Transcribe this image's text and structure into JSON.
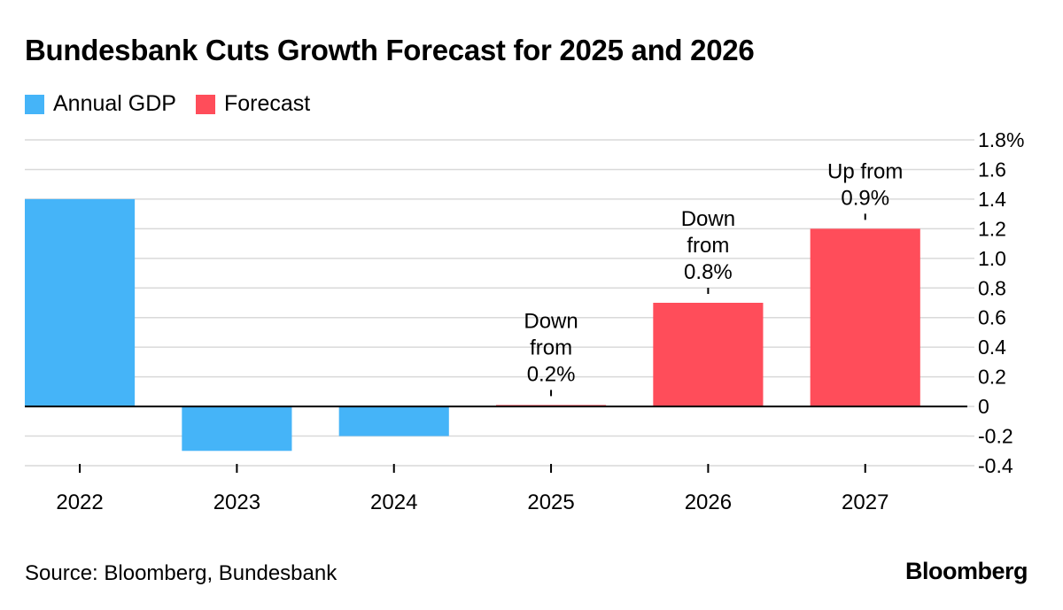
{
  "header": {
    "title": "Bundesbank Cuts Growth Forecast for 2025 and 2026"
  },
  "footer": {
    "source": "Source: Bloomberg, Bundesbank",
    "brand": "Bloomberg"
  },
  "colors": {
    "annual": "#45b4f8",
    "forecast": "#ff4d5a",
    "grid": "#d9d9d9",
    "zero": "#000000"
  },
  "chart_data": {
    "type": "bar",
    "title": "Bundesbank Cuts Growth Forecast for 2025 and 2026",
    "xlabel": "",
    "ylabel": "",
    "ylim": [
      -0.4,
      1.8
    ],
    "yticks": [
      -0.4,
      -0.2,
      0,
      0.2,
      0.4,
      0.6,
      0.8,
      1.0,
      1.2,
      1.4,
      1.6,
      1.8
    ],
    "ytick_labels": [
      "-0.4",
      "-0.2",
      "0",
      "0.2",
      "0.4",
      "0.6",
      "0.8",
      "1.0",
      "1.2",
      "1.4",
      "1.6",
      "1.8%"
    ],
    "y_axis_side": "right",
    "grid": true,
    "legend_position": "top-left",
    "categories": [
      "2022",
      "2023",
      "2024",
      "2025",
      "2026",
      "2027"
    ],
    "series": [
      {
        "name": "Annual GDP",
        "color": "#45b4f8",
        "values": [
          1.4,
          -0.3,
          -0.2,
          null,
          null,
          null
        ]
      },
      {
        "name": "Forecast",
        "color": "#ff4d5a",
        "values": [
          null,
          null,
          null,
          0.01,
          0.7,
          1.2
        ]
      }
    ],
    "annotations": [
      {
        "category": "2025",
        "lines": [
          "Down",
          "from",
          "0.2%"
        ]
      },
      {
        "category": "2026",
        "lines": [
          "Down",
          "from",
          "0.8%"
        ]
      },
      {
        "category": "2027",
        "lines": [
          "Up from",
          "0.9%"
        ]
      }
    ]
  }
}
